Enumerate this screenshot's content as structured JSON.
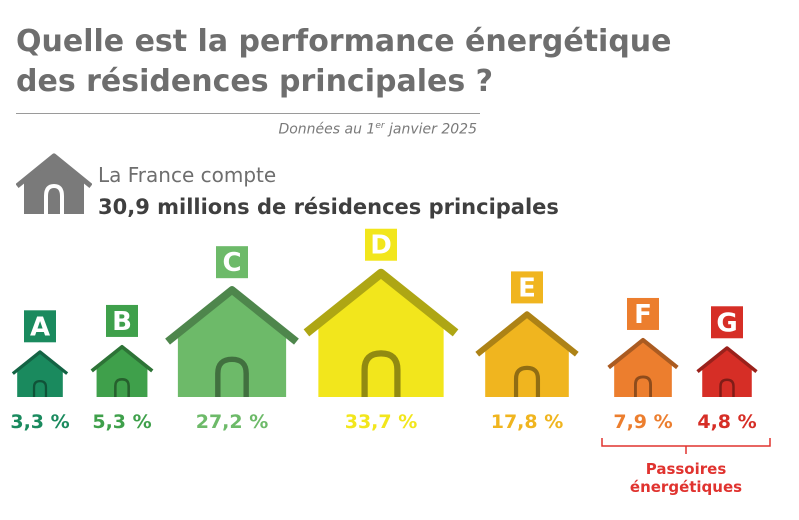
{
  "header": {
    "title": "Quelle est la performance énergétique des résidences principales ?",
    "subtitle_before": "Données au 1",
    "subtitle_sup": "er",
    "subtitle_after": " janvier 2025"
  },
  "summary": {
    "intro": "La France compte",
    "main": "30,9 millions de résidences principales",
    "icon": "house-icon"
  },
  "chart_data": {
    "type": "bar",
    "categories": [
      "A",
      "B",
      "C",
      "D",
      "E",
      "F",
      "G"
    ],
    "values": [
      3.3,
      5.3,
      27.2,
      33.7,
      17.8,
      7.9,
      4.8
    ],
    "value_labels": [
      "3,3 %",
      "5,3 %",
      "27,2 %",
      "33,7 %",
      "17,8 %",
      "7,9 %",
      "4,8 %"
    ],
    "unit": "%",
    "colors": [
      "#1a8a5e",
      "#3fa04b",
      "#6dba69",
      "#f2e61c",
      "#f0b51f",
      "#ec7e2e",
      "#d62e26"
    ],
    "mark": "house-icon",
    "bracket": {
      "label": "Passoires énergétiques",
      "categories": [
        "F",
        "G"
      ],
      "color": "#e0332f"
    }
  }
}
